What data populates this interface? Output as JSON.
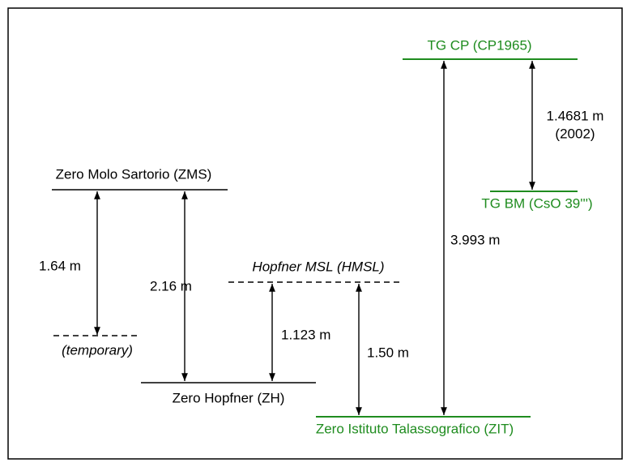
{
  "levels": [
    {
      "label": "TG CP (CP1965)"
    },
    {
      "label": "TG BM (CsO 39''')"
    },
    {
      "label": "Zero Molo Sartorio (ZMS)"
    },
    {
      "label": "(temporary)"
    },
    {
      "label": "Hopfner MSL (HMSL)"
    },
    {
      "label": "Zero Hopfner (ZH)"
    },
    {
      "label": "Zero Istituto Talassografico (ZIT)"
    }
  ],
  "measurements": [
    {
      "label": "1.4681 m",
      "note": "(2002)"
    },
    {
      "label": "3.993 m"
    },
    {
      "label": "1.64 m"
    },
    {
      "label": "2.16 m"
    },
    {
      "label": "1.123 m"
    },
    {
      "label": "1.50 m"
    }
  ]
}
